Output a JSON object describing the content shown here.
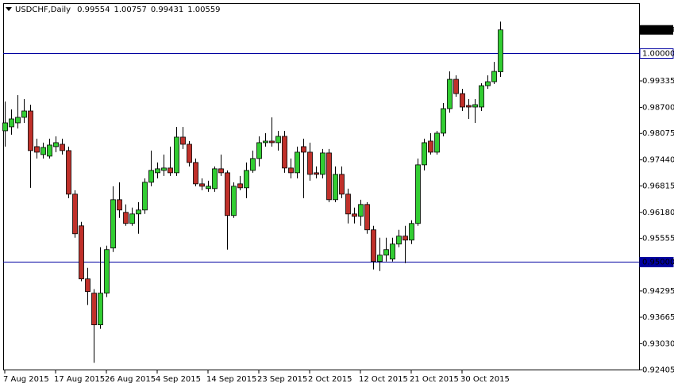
{
  "chart_data": {
    "type": "candlestick",
    "title": "USDCHF,Daily",
    "categories": [
      "7 Aug 2015",
      null,
      null,
      null,
      null,
      null,
      null,
      null,
      "17 Aug 2015",
      null,
      null,
      null,
      null,
      null,
      null,
      null,
      "26 Aug 2015",
      null,
      null,
      null,
      null,
      null,
      null,
      null,
      "4 Sep 2015",
      null,
      null,
      null,
      null,
      null,
      null,
      null,
      "14 Sep 2015",
      null,
      null,
      null,
      null,
      null,
      null,
      null,
      "23 Sep 2015",
      null,
      null,
      null,
      null,
      null,
      null,
      null,
      "2 Oct 2015",
      null,
      null,
      null,
      null,
      null,
      null,
      null,
      "12 Oct 2015",
      null,
      null,
      null,
      null,
      null,
      null,
      null,
      "21 Oct 2015",
      null,
      null,
      null,
      null,
      null,
      null,
      null,
      "30 Oct 2015",
      null,
      null,
      null,
      null,
      null,
      null
    ],
    "open": [
      0.98138,
      0.98233,
      0.98328,
      0.98461,
      0.98613,
      0.97758,
      0.97568,
      0.9753,
      0.97758,
      0.97815,
      0.97663,
      0.96618,
      0.95858,
      0.94585,
      0.94243,
      0.93483,
      0.94243,
      0.95326,
      0.96485,
      0.96181,
      0.95915,
      0.96143,
      0.96238,
      0.96903,
      0.97131,
      0.97188,
      0.97245,
      0.97131,
      0.97986,
      0.97815,
      0.97378,
      0.96865,
      0.96751,
      0.96751,
      0.97226,
      0.97131,
      0.96105,
      0.96865,
      0.9677,
      0.97188,
      0.97473,
      0.97853,
      0.97891,
      0.97853,
      0.98005,
      0.97245,
      0.97131,
      0.97758,
      0.97625,
      0.97131,
      0.97093,
      0.97606,
      0.96485,
      0.97093,
      0.96618,
      0.96143,
      0.96086,
      0.96371,
      0.95763,
      0.95003,
      0.95155,
      0.9506,
      0.95421,
      0.95611,
      0.95516,
      0.95915,
      0.97321,
      0.97891,
      0.97625,
      0.98081,
      0.9867,
      0.99373,
      0.99031,
      0.98746,
      0.98708,
      0.98708,
      0.99221,
      0.99316,
      0.99554
    ],
    "high": [
      0.98841,
      0.98651,
      0.98993,
      0.98898,
      0.98765,
      0.97948,
      0.97853,
      0.97948,
      0.98005,
      0.97948,
      0.97758,
      0.96713,
      0.95953,
      0.94851,
      0.94338,
      0.95345,
      0.95383,
      0.96808,
      0.96903,
      0.96371,
      0.96295,
      0.96428,
      0.96998,
      0.97663,
      0.97378,
      0.97568,
      0.97758,
      0.98233,
      0.98233,
      0.97891,
      0.97473,
      0.96998,
      0.96941,
      0.97283,
      0.97568,
      0.97188,
      0.96903,
      0.97055,
      0.97378,
      0.97663,
      0.98005,
      0.98081,
      0.98461,
      0.98138,
      0.98138,
      0.97473,
      0.97758,
      0.97948,
      0.97853,
      0.97283,
      0.97701,
      0.97701,
      0.97283,
      0.97283,
      0.96751,
      0.96295,
      0.96485,
      0.96428,
      0.95858,
      0.95573,
      0.95573,
      0.95573,
      0.95763,
      0.95858,
      0.95991,
      0.97473,
      0.97948,
      0.98081,
      0.98138,
      0.98803,
      0.99563,
      0.99468,
      0.99145,
      0.98898,
      0.98898,
      0.99278,
      0.99468,
      0.99791,
      1.00757
    ],
    "low": [
      0.97758,
      0.98043,
      0.98195,
      0.98328,
      0.9677,
      0.97473,
      0.97473,
      0.97473,
      0.97625,
      0.97568,
      0.96523,
      0.95573,
      0.94528,
      0.93958,
      0.92571,
      0.93388,
      0.94148,
      0.95231,
      0.96048,
      0.95858,
      0.95858,
      0.95668,
      0.96143,
      0.96808,
      0.96998,
      0.97055,
      0.97055,
      0.97055,
      0.97701,
      0.97283,
      0.96808,
      0.96713,
      0.96675,
      0.96675,
      0.97055,
      0.95288,
      0.96048,
      0.96713,
      0.96523,
      0.97131,
      0.97283,
      0.97758,
      0.97758,
      0.97663,
      0.97131,
      0.96998,
      0.96998,
      0.96523,
      0.96941,
      0.96998,
      0.96998,
      0.96428,
      0.96428,
      0.96523,
      0.95915,
      0.95915,
      0.95858,
      0.95668,
      0.94813,
      0.94775,
      0.95003,
      0.95003,
      0.95345,
      0.94965,
      0.95421,
      0.95858,
      0.97188,
      0.97568,
      0.97568,
      0.98005,
      0.98575,
      0.98955,
      0.98613,
      0.98423,
      0.98328,
      0.98613,
      0.99145,
      0.99259,
      0.99431
    ],
    "close": [
      0.98328,
      0.98423,
      0.98461,
      0.98613,
      0.97663,
      0.97625,
      0.97739,
      0.97796,
      0.97853,
      0.97663,
      0.96618,
      0.95668,
      0.94585,
      0.94281,
      0.93483,
      0.94243,
      0.95288,
      0.96485,
      0.96238,
      0.95915,
      0.96143,
      0.96238,
      0.96903,
      0.97188,
      0.97226,
      0.97245,
      0.97131,
      0.97986,
      0.97815,
      0.97378,
      0.96865,
      0.96808,
      0.96808,
      0.97226,
      0.97131,
      0.96105,
      0.96808,
      0.9677,
      0.97188,
      0.97473,
      0.97853,
      0.97891,
      0.97853,
      0.98005,
      0.97245,
      0.97131,
      0.97625,
      0.97625,
      0.97093,
      0.97093,
      0.97606,
      0.96485,
      0.97093,
      0.96618,
      0.96143,
      0.96086,
      0.96371,
      0.95763,
      0.95003,
      0.95155,
      0.95288,
      0.95421,
      0.95611,
      0.95516,
      0.95915,
      0.97321,
      0.97853,
      0.97625,
      0.98081,
      0.9867,
      0.99373,
      0.99031,
      0.98708,
      0.98708,
      0.98765,
      0.99221,
      0.99316,
      0.99563,
      1.00559
    ],
    "up_color": "#32cd32",
    "down_color": "#c0302a",
    "ylim": [
      0.9241,
      1.012
    ],
    "yticks": [
      0.99335,
      {
        "value": 0.987,
        "label": "0.98700"
      },
      0.98075,
      {
        "value": 0.9744,
        "label": "0.97440"
      },
      0.96815,
      {
        "value": 0.9618,
        "label": "0.96180"
      },
      0.95555,
      0.94295,
      0.93665,
      {
        "value": 0.9303,
        "label": "0.93030"
      },
      0.92405
    ],
    "hlines": [
      {
        "value": 1,
        "label": "1.00000"
      },
      {
        "value": 0.95,
        "label": "0.95000"
      }
    ],
    "hline_color": "#0000a0"
  }
}
